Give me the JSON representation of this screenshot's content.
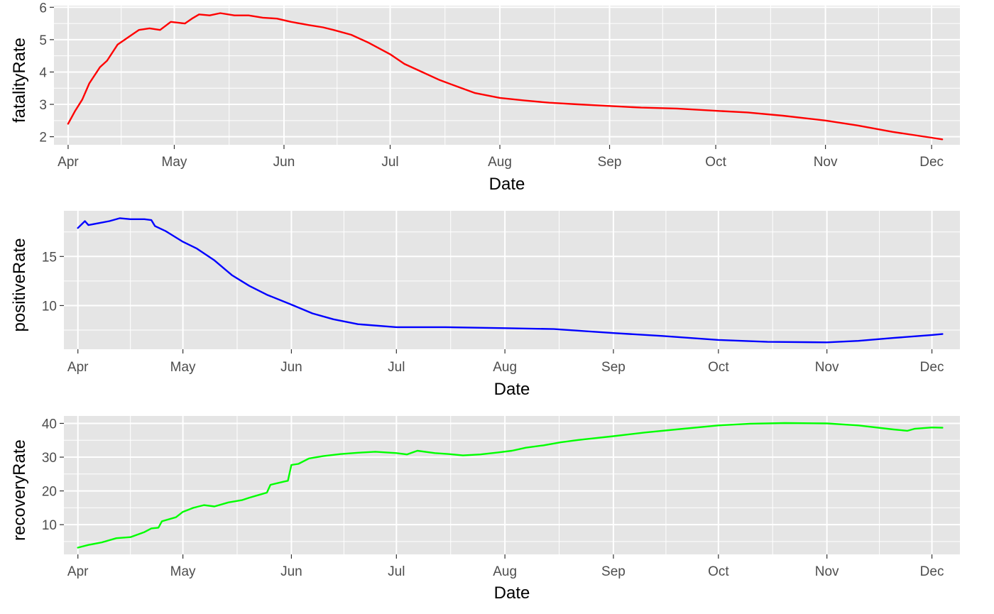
{
  "chart_data": [
    {
      "type": "line",
      "xlabel": "Date",
      "ylabel": "fatalityRate",
      "color": "#ff0000",
      "grid": true,
      "xlim": [
        "2020-03-28",
        "2020-12-09"
      ],
      "ylim": [
        1.75,
        6.05
      ],
      "x_ticks": [
        {
          "date": "2020-04-01",
          "label": "Apr"
        },
        {
          "date": "2020-05-01",
          "label": "May"
        },
        {
          "date": "2020-06-01",
          "label": "Jun"
        },
        {
          "date": "2020-07-01",
          "label": "Jul"
        },
        {
          "date": "2020-08-01",
          "label": "Aug"
        },
        {
          "date": "2020-09-01",
          "label": "Sep"
        },
        {
          "date": "2020-10-01",
          "label": "Oct"
        },
        {
          "date": "2020-11-01",
          "label": "Nov"
        },
        {
          "date": "2020-12-01",
          "label": "Dec"
        }
      ],
      "y_ticks": [
        2,
        3,
        4,
        5,
        6
      ],
      "points": [
        [
          "2020-04-01",
          2.4
        ],
        [
          "2020-04-03",
          2.8
        ],
        [
          "2020-04-05",
          3.15
        ],
        [
          "2020-04-07",
          3.65
        ],
        [
          "2020-04-10",
          4.15
        ],
        [
          "2020-04-12",
          4.35
        ],
        [
          "2020-04-15",
          4.85
        ],
        [
          "2020-04-19",
          5.15
        ],
        [
          "2020-04-21",
          5.3
        ],
        [
          "2020-04-24",
          5.35
        ],
        [
          "2020-04-27",
          5.3
        ],
        [
          "2020-04-30",
          5.55
        ],
        [
          "2020-05-04",
          5.5
        ],
        [
          "2020-05-06",
          5.65
        ],
        [
          "2020-05-08",
          5.78
        ],
        [
          "2020-05-11",
          5.75
        ],
        [
          "2020-05-14",
          5.82
        ],
        [
          "2020-05-18",
          5.75
        ],
        [
          "2020-05-22",
          5.75
        ],
        [
          "2020-05-26",
          5.68
        ],
        [
          "2020-05-30",
          5.65
        ],
        [
          "2020-06-03",
          5.55
        ],
        [
          "2020-06-08",
          5.45
        ],
        [
          "2020-06-12",
          5.38
        ],
        [
          "2020-06-15",
          5.3
        ],
        [
          "2020-06-20",
          5.15
        ],
        [
          "2020-06-25",
          4.9
        ],
        [
          "2020-07-01",
          4.55
        ],
        [
          "2020-07-05",
          4.25
        ],
        [
          "2020-07-10",
          4.0
        ],
        [
          "2020-07-15",
          3.75
        ],
        [
          "2020-07-20",
          3.55
        ],
        [
          "2020-07-25",
          3.35
        ],
        [
          "2020-08-01",
          3.2
        ],
        [
          "2020-08-08",
          3.12
        ],
        [
          "2020-08-15",
          3.05
        ],
        [
          "2020-08-23",
          3.0
        ],
        [
          "2020-09-01",
          2.95
        ],
        [
          "2020-09-10",
          2.9
        ],
        [
          "2020-09-20",
          2.87
        ],
        [
          "2020-10-01",
          2.8
        ],
        [
          "2020-10-10",
          2.75
        ],
        [
          "2020-10-20",
          2.65
        ],
        [
          "2020-11-01",
          2.5
        ],
        [
          "2020-11-10",
          2.35
        ],
        [
          "2020-11-20",
          2.15
        ],
        [
          "2020-12-01",
          1.97
        ],
        [
          "2020-12-04",
          1.92
        ]
      ]
    },
    {
      "type": "line",
      "xlabel": "Date",
      "ylabel": "positiveRate",
      "color": "#0000ff",
      "grid": true,
      "xlim": [
        "2020-03-28",
        "2020-12-09"
      ],
      "ylim": [
        5.55,
        19.65
      ],
      "x_ticks": [
        {
          "date": "2020-04-01",
          "label": "Apr"
        },
        {
          "date": "2020-05-01",
          "label": "May"
        },
        {
          "date": "2020-06-01",
          "label": "Jun"
        },
        {
          "date": "2020-07-01",
          "label": "Jul"
        },
        {
          "date": "2020-08-01",
          "label": "Aug"
        },
        {
          "date": "2020-09-01",
          "label": "Sep"
        },
        {
          "date": "2020-10-01",
          "label": "Oct"
        },
        {
          "date": "2020-11-01",
          "label": "Nov"
        },
        {
          "date": "2020-12-01",
          "label": "Dec"
        }
      ],
      "y_ticks": [
        10,
        15
      ],
      "points": [
        [
          "2020-04-01",
          17.9
        ],
        [
          "2020-04-03",
          18.6
        ],
        [
          "2020-04-04",
          18.2
        ],
        [
          "2020-04-07",
          18.4
        ],
        [
          "2020-04-10",
          18.6
        ],
        [
          "2020-04-13",
          18.9
        ],
        [
          "2020-04-16",
          18.8
        ],
        [
          "2020-04-20",
          18.8
        ],
        [
          "2020-04-22",
          18.7
        ],
        [
          "2020-04-23",
          18.1
        ],
        [
          "2020-04-26",
          17.6
        ],
        [
          "2020-05-01",
          16.5
        ],
        [
          "2020-05-05",
          15.8
        ],
        [
          "2020-05-10",
          14.6
        ],
        [
          "2020-05-15",
          13.1
        ],
        [
          "2020-05-20",
          12.0
        ],
        [
          "2020-05-25",
          11.1
        ],
        [
          "2020-06-01",
          10.1
        ],
        [
          "2020-06-07",
          9.2
        ],
        [
          "2020-06-13",
          8.6
        ],
        [
          "2020-06-20",
          8.1
        ],
        [
          "2020-07-01",
          7.8
        ],
        [
          "2020-07-15",
          7.8
        ],
        [
          "2020-08-01",
          7.7
        ],
        [
          "2020-08-15",
          7.6
        ],
        [
          "2020-09-01",
          7.2
        ],
        [
          "2020-09-15",
          6.9
        ],
        [
          "2020-10-01",
          6.5
        ],
        [
          "2020-10-15",
          6.3
        ],
        [
          "2020-11-01",
          6.25
        ],
        [
          "2020-11-10",
          6.4
        ],
        [
          "2020-11-20",
          6.7
        ],
        [
          "2020-12-01",
          7.0
        ],
        [
          "2020-12-04",
          7.1
        ]
      ]
    },
    {
      "type": "line",
      "xlabel": "Date",
      "ylabel": "recoveryRate",
      "color": "#00ff00",
      "grid": true,
      "xlim": [
        "2020-03-28",
        "2020-12-09"
      ],
      "ylim": [
        1.2,
        42.2
      ],
      "x_ticks": [
        {
          "date": "2020-04-01",
          "label": "Apr"
        },
        {
          "date": "2020-05-01",
          "label": "May"
        },
        {
          "date": "2020-06-01",
          "label": "Jun"
        },
        {
          "date": "2020-07-01",
          "label": "Jul"
        },
        {
          "date": "2020-08-01",
          "label": "Aug"
        },
        {
          "date": "2020-09-01",
          "label": "Sep"
        },
        {
          "date": "2020-10-01",
          "label": "Oct"
        },
        {
          "date": "2020-11-01",
          "label": "Nov"
        },
        {
          "date": "2020-12-01",
          "label": "Dec"
        }
      ],
      "y_ticks": [
        10,
        20,
        30,
        40
      ],
      "points": [
        [
          "2020-04-01",
          3.2
        ],
        [
          "2020-04-04",
          4.0
        ],
        [
          "2020-04-08",
          4.8
        ],
        [
          "2020-04-12",
          6.0
        ],
        [
          "2020-04-16",
          6.3
        ],
        [
          "2020-04-20",
          7.8
        ],
        [
          "2020-04-22",
          8.9
        ],
        [
          "2020-04-24",
          9.1
        ],
        [
          "2020-04-25",
          11.0
        ],
        [
          "2020-04-29",
          12.2
        ],
        [
          "2020-05-01",
          13.8
        ],
        [
          "2020-05-04",
          15.0
        ],
        [
          "2020-05-07",
          15.8
        ],
        [
          "2020-05-10",
          15.4
        ],
        [
          "2020-05-14",
          16.6
        ],
        [
          "2020-05-18",
          17.3
        ],
        [
          "2020-05-20",
          18.0
        ],
        [
          "2020-05-23",
          18.9
        ],
        [
          "2020-05-25",
          19.5
        ],
        [
          "2020-05-26",
          21.8
        ],
        [
          "2020-05-30",
          22.8
        ],
        [
          "2020-05-31",
          23.0
        ],
        [
          "2020-06-01",
          27.7
        ],
        [
          "2020-06-03",
          28.0
        ],
        [
          "2020-06-06",
          29.6
        ],
        [
          "2020-06-10",
          30.3
        ],
        [
          "2020-06-15",
          30.9
        ],
        [
          "2020-06-20",
          31.3
        ],
        [
          "2020-06-25",
          31.6
        ],
        [
          "2020-07-01",
          31.2
        ],
        [
          "2020-07-04",
          30.8
        ],
        [
          "2020-07-07",
          31.9
        ],
        [
          "2020-07-12",
          31.2
        ],
        [
          "2020-07-16",
          30.9
        ],
        [
          "2020-07-20",
          30.5
        ],
        [
          "2020-07-25",
          30.8
        ],
        [
          "2020-07-30",
          31.4
        ],
        [
          "2020-08-03",
          31.9
        ],
        [
          "2020-08-07",
          32.8
        ],
        [
          "2020-08-12",
          33.5
        ],
        [
          "2020-08-17",
          34.4
        ],
        [
          "2020-08-22",
          35.1
        ],
        [
          "2020-09-01",
          36.2
        ],
        [
          "2020-09-10",
          37.3
        ],
        [
          "2020-09-20",
          38.3
        ],
        [
          "2020-10-01",
          39.4
        ],
        [
          "2020-10-10",
          39.9
        ],
        [
          "2020-10-20",
          40.1
        ],
        [
          "2020-11-01",
          40.0
        ],
        [
          "2020-11-10",
          39.4
        ],
        [
          "2020-11-20",
          38.2
        ],
        [
          "2020-11-24",
          37.8
        ],
        [
          "2020-11-26",
          38.4
        ],
        [
          "2020-12-01",
          38.8
        ],
        [
          "2020-12-04",
          38.7
        ]
      ]
    }
  ]
}
